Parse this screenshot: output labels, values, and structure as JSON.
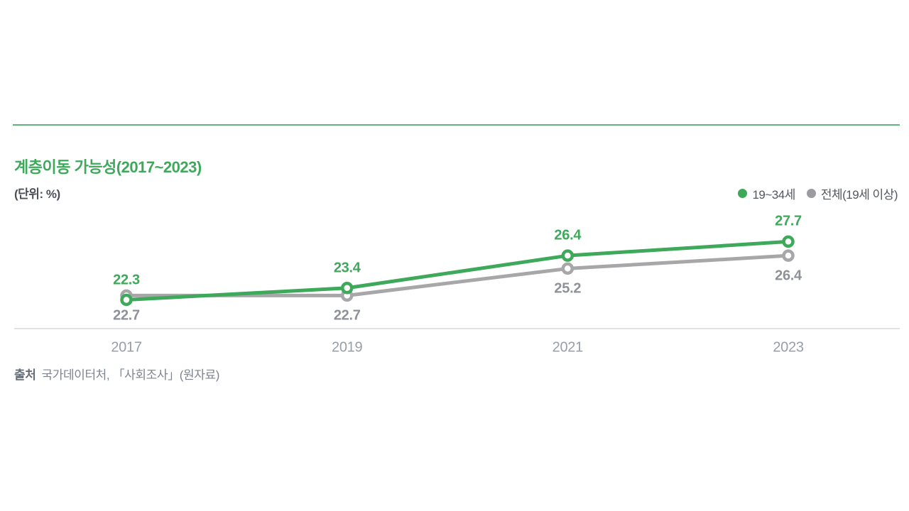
{
  "title": "계층이동 가능성(2017~2023)",
  "unit_label": "(단위: %)",
  "legend": [
    {
      "label": "19~34세",
      "color": "#3ea95b"
    },
    {
      "label": "전체(19세 이상)",
      "color": "#9b9ba0"
    }
  ],
  "source": {
    "prefix": "출처",
    "text": "국가데이터처, 「사회조사」(원자료)"
  },
  "chart_data": {
    "type": "line",
    "title": "계층이동 가능성(2017~2023)",
    "unit": "%",
    "categories": [
      "2017",
      "2019",
      "2021",
      "2023"
    ],
    "series": [
      {
        "name": "19~34세",
        "color": "#3ea95b",
        "label_color": "#3ea95b",
        "label_position": "above",
        "values": [
          22.3,
          23.4,
          26.4,
          27.7
        ]
      },
      {
        "name": "전체(19세 이상)",
        "color": "#a7a7a9",
        "label_color": "#8e9298",
        "label_position": "below",
        "values": [
          22.7,
          22.7,
          25.2,
          26.4
        ]
      }
    ],
    "ylim": [
      21.5,
      29
    ],
    "grid": false,
    "legend_position": "top-right",
    "marker": "open-circle"
  }
}
